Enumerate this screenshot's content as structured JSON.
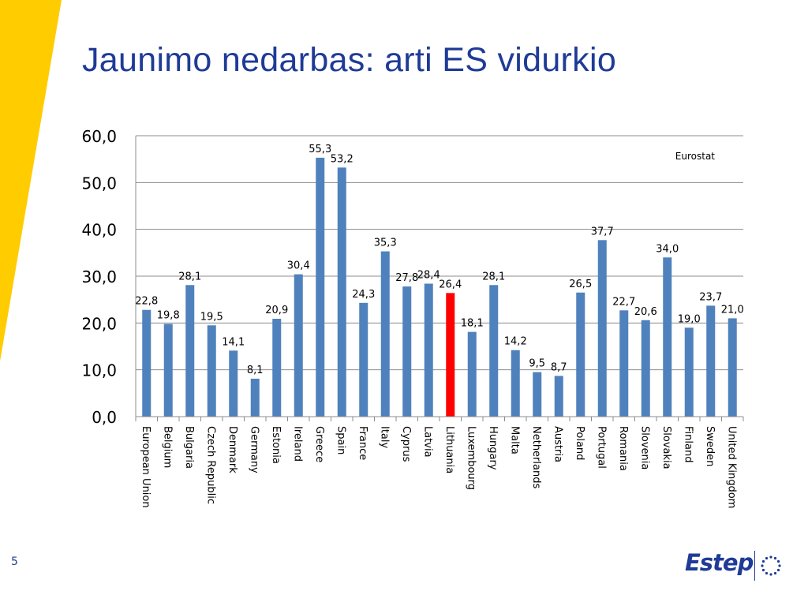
{
  "slide": {
    "title": "Jaunimo nedarbas: arti ES vidurkio",
    "page_number": "5",
    "logo_text": "Estep",
    "colors": {
      "title": "#1f3b97",
      "accent_stripe": "#ffcc00",
      "bar": "#4f81bd",
      "highlight_bar": "#ff0000"
    }
  },
  "chart_data": {
    "type": "bar",
    "title": "",
    "xlabel": "",
    "ylabel": "",
    "ylim": [
      0,
      60
    ],
    "yticks": [
      "0,0",
      "10,0",
      "20,0",
      "30,0",
      "40,0",
      "50,0",
      "60,0"
    ],
    "ytick_values": [
      0,
      10,
      20,
      30,
      40,
      50,
      60
    ],
    "grid": true,
    "annotation": "Eurostat",
    "highlight_category": "Lithuania",
    "categories": [
      "European Union",
      "Belgium",
      "Bulgaria",
      "Czech Republic",
      "Denmark",
      "Germany",
      "Estonia",
      "Ireland",
      "Greece",
      "Spain",
      "France",
      "Italy",
      "Cyprus",
      "Latvia",
      "Lithuania",
      "Luxembourg",
      "Hungary",
      "Malta",
      "Netherlands",
      "Austria",
      "Poland",
      "Portugal",
      "Romania",
      "Slovenia",
      "Slovakia",
      "Finland",
      "Sweden",
      "United Kingdom"
    ],
    "values": [
      22.8,
      19.8,
      28.1,
      19.5,
      14.1,
      8.1,
      20.9,
      30.4,
      55.3,
      53.2,
      24.3,
      35.3,
      27.8,
      28.4,
      26.4,
      18.1,
      28.1,
      14.2,
      9.5,
      8.7,
      26.5,
      37.7,
      22.7,
      20.6,
      34.0,
      19.0,
      23.7,
      21.0
    ],
    "value_labels": [
      "22,8",
      "19,8",
      "28,1",
      "19,5",
      "14,1",
      "8,1",
      "20,9",
      "30,4",
      "55,3",
      "53,2",
      "24,3",
      "35,3",
      "27,8",
      "28,4",
      "26,4",
      "18,1",
      "28,1",
      "14,2",
      "9,5",
      "8,7",
      "26,5",
      "37,7",
      "22,7",
      "20,6",
      "34,0",
      "19,0",
      "23,7",
      "21,0"
    ]
  }
}
